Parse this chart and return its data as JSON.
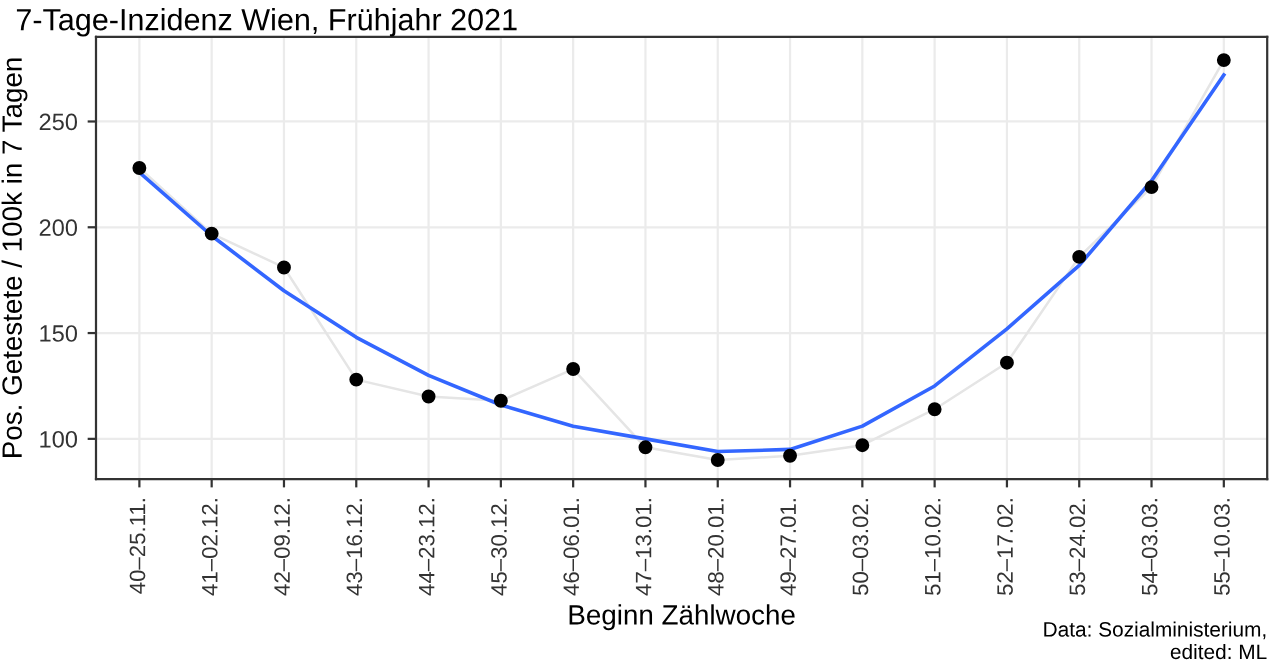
{
  "chart_data": {
    "type": "scatter",
    "title": "7-Tage-Inzidenz Wien, Frühjahr 2021",
    "xlabel": "Beginn Zählwoche",
    "ylabel": "Pos. Getestete / 100k in 7 Tagen",
    "categories": [
      "40–25.11.",
      "41–02.12.",
      "42–09.12.",
      "43–16.12.",
      "44–23.12.",
      "45–30.12.",
      "46–06.01.",
      "47–13.01.",
      "48–20.01.",
      "49–27.01.",
      "50–03.02.",
      "51–10.02.",
      "52–17.02.",
      "53–24.02.",
      "54–03.03.",
      "55–10.03."
    ],
    "series": [
      {
        "type": "line",
        "color": "#e5e5e5",
        "marker": "none",
        "values": [
          228,
          197,
          181,
          128,
          120,
          118,
          133,
          96,
          90,
          92,
          97,
          114,
          136,
          186,
          219,
          279
        ]
      },
      {
        "type": "line",
        "color": "#3366ff",
        "marker": "none",
        "values": [
          226,
          196,
          170,
          148,
          130,
          116,
          106,
          100,
          94,
          95,
          106,
          125,
          152,
          182,
          222,
          272
        ]
      },
      {
        "color": "#000000",
        "marker": "circle",
        "values": [
          228,
          197,
          181,
          128,
          120,
          118,
          133,
          96,
          90,
          92,
          97,
          114,
          136,
          186,
          219,
          279
        ]
      }
    ],
    "ylim": [
      81,
      290
    ],
    "yticks": [
      100,
      150,
      200,
      250
    ],
    "grid": true,
    "annotations": [
      "Data: Sozialministerium,\nedited: ML"
    ]
  }
}
